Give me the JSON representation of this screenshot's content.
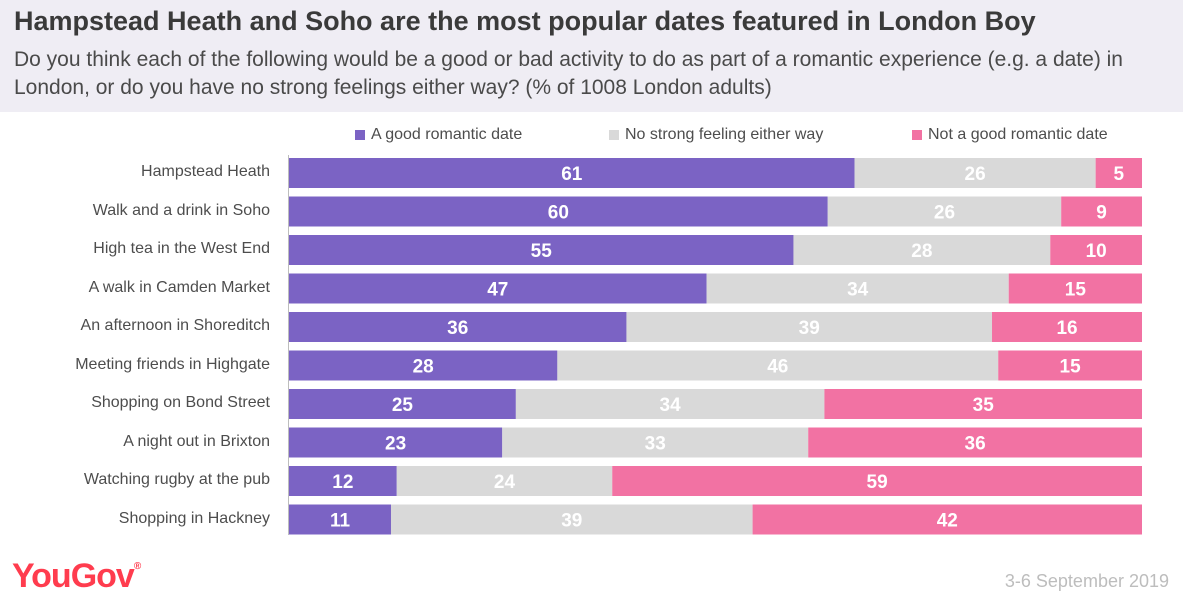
{
  "header": {
    "title": "Hampstead Heath and Soho are the most popular dates featured in London Boy",
    "subtitle": "Do you think each of the following would be a good or bad activity to do as part of a romantic experience (e.g. a date) in London, or do you have no strong feelings either way? (% of 1008 London adults)"
  },
  "footer": {
    "brand": "YouGov",
    "date": "3-6 September 2019"
  },
  "chart_data": {
    "type": "bar",
    "orientation": "horizontal",
    "stacked": true,
    "categories": [
      "Hampstead Heath",
      "Walk and a drink in Soho",
      "High tea in the West End",
      "A walk in Camden Market",
      "An afternoon in Shoreditch",
      "Meeting friends in Highgate",
      "Shopping on Bond Street",
      "A night out in Brixton",
      "Watching rugby at the pub",
      "Shopping in Hackney"
    ],
    "series": [
      {
        "name": "A good romantic date",
        "color": "#7b63c4",
        "values": [
          61,
          60,
          55,
          47,
          36,
          28,
          25,
          23,
          12,
          11
        ]
      },
      {
        "name": "No strong feeling either way",
        "color": "#d9d9d9",
        "values": [
          26,
          26,
          28,
          34,
          39,
          46,
          34,
          33,
          24,
          39
        ]
      },
      {
        "name": "Not a good romantic date",
        "color": "#f272a3",
        "values": [
          5,
          9,
          10,
          15,
          16,
          15,
          35,
          36,
          59,
          42
        ]
      }
    ],
    "legend": "top",
    "grid": false
  }
}
